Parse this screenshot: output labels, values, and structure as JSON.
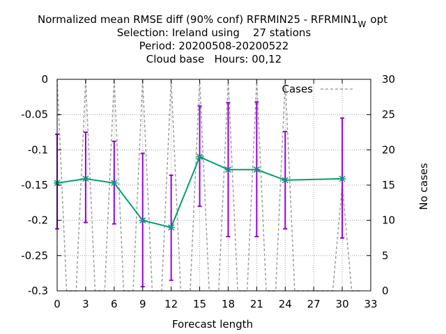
{
  "chart_data": {
    "type": "line",
    "title_lines": [
      "Normalized mean RMSE diff (90% conf) RFRMIN25 - RFRMIN1",
      "Selection: Ireland using    27 stations",
      "Period: 20200508-20200522",
      "Cloud base   Hours: 00,12"
    ],
    "title_subscript": "W",
    "title_suffix": "opt",
    "xlabel": "Forecast length",
    "ylabel": "",
    "y2label": "No cases",
    "xlim": [
      0,
      33
    ],
    "ylim": [
      -0.3,
      0
    ],
    "y2lim": [
      0,
      30
    ],
    "x_ticks": [
      0,
      3,
      6,
      9,
      12,
      15,
      18,
      21,
      24,
      27,
      30,
      33
    ],
    "y_ticks": [
      0,
      -0.05,
      -0.1,
      -0.15,
      -0.2,
      -0.25,
      -0.3
    ],
    "y_tick_labels": [
      "0",
      "-0.05",
      "-0.1",
      "-0.15",
      "-0.2",
      "-0.25",
      "-0.3"
    ],
    "y2_ticks": [
      0,
      5,
      10,
      15,
      20,
      25,
      30
    ],
    "grid": true,
    "legend": {
      "label": "Cases",
      "placement": "top-right"
    },
    "colors": {
      "line": "#009e73",
      "errorbar": "#9400d3",
      "cases": "#a0a0a0"
    },
    "series": [
      {
        "kind": "mean-with-errorbars",
        "x": [
          0,
          3,
          6,
          9,
          12,
          15,
          18,
          21,
          24,
          30
        ],
        "y": [
          -0.147,
          -0.141,
          -0.147,
          -0.2,
          -0.21,
          -0.11,
          -0.128,
          -0.128,
          -0.143,
          -0.141
        ],
        "err_low": [
          -0.212,
          -0.203,
          -0.205,
          -0.294,
          -0.285,
          -0.18,
          -0.223,
          -0.223,
          -0.212,
          -0.225
        ],
        "err_high": [
          -0.078,
          -0.075,
          -0.088,
          -0.105,
          -0.136,
          -0.038,
          -0.033,
          -0.032,
          -0.074,
          -0.055
        ]
      },
      {
        "name": "Cases",
        "kind": "cases",
        "axis": "y2",
        "x": [
          0,
          1,
          2,
          3,
          4,
          5,
          6,
          7,
          8,
          9,
          10,
          11,
          12,
          13,
          14,
          15,
          16,
          17,
          18,
          19,
          20,
          21,
          22,
          23,
          24,
          25,
          26,
          27,
          28,
          29,
          30,
          31,
          32
        ],
        "values": [
          30,
          0,
          0,
          30,
          0,
          0,
          30,
          0,
          0,
          30,
          0,
          0,
          30,
          0,
          0,
          30,
          0,
          0,
          30,
          0,
          0,
          30,
          0,
          0,
          30,
          0,
          0,
          0,
          0,
          0,
          15,
          0,
          0
        ]
      }
    ]
  }
}
